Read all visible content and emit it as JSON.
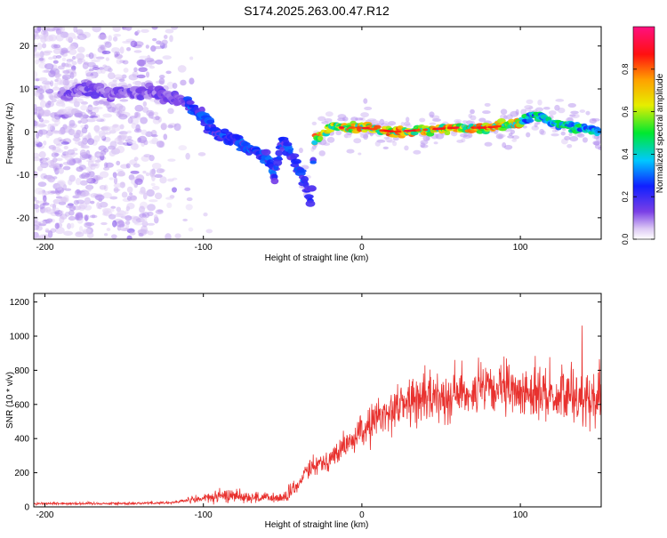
{
  "title": "S174.2025.263.00.47.R12",
  "chart_data": [
    {
      "type": "heatmap",
      "name": "spectrogram",
      "xlabel": "Height of straight line (km)",
      "ylabel": "Frequency (Hz)",
      "xlim": [
        -207,
        151
      ],
      "ylim": [
        -25,
        24.5
      ],
      "xticks": [
        -200,
        -100,
        0,
        100
      ],
      "yticks": [
        20,
        10,
        0,
        -10,
        -20
      ],
      "colorbar": {
        "label": "Normalized spectral amplitude",
        "range": [
          0,
          1
        ],
        "ticks": [
          0.0,
          0.2,
          0.4,
          0.6,
          0.8
        ]
      },
      "ridge": [
        {
          "x": -185,
          "y": 9
        },
        {
          "x": -175,
          "y": 10
        },
        {
          "x": -160,
          "y": 9
        },
        {
          "x": -145,
          "y": 9
        },
        {
          "x": -130,
          "y": 9
        },
        {
          "x": -120,
          "y": 8
        },
        {
          "x": -110,
          "y": 7
        },
        {
          "x": -100,
          "y": 3
        },
        {
          "x": -95,
          "y": 1
        },
        {
          "x": -90,
          "y": -1
        },
        {
          "x": -80,
          "y": -2
        },
        {
          "x": -70,
          "y": -4
        },
        {
          "x": -60,
          "y": -6
        },
        {
          "x": -55,
          "y": -10
        },
        {
          "x": -50,
          "y": -2
        },
        {
          "x": -45,
          "y": -5
        },
        {
          "x": -40,
          "y": -8
        },
        {
          "x": -35,
          "y": -13
        },
        {
          "x": -32,
          "y": -16
        },
        {
          "x": -30,
          "y": -2
        },
        {
          "x": -20,
          "y": 1
        },
        {
          "x": 0,
          "y": 1
        },
        {
          "x": 20,
          "y": 0
        },
        {
          "x": 40,
          "y": 0.5
        },
        {
          "x": 60,
          "y": 1
        },
        {
          "x": 80,
          "y": 1
        },
        {
          "x": 100,
          "y": 2
        },
        {
          "x": 110,
          "y": 4
        },
        {
          "x": 120,
          "y": 2
        },
        {
          "x": 135,
          "y": 1
        },
        {
          "x": 150,
          "y": 0
        }
      ]
    },
    {
      "type": "line",
      "name": "snr",
      "xlabel": "Height of straight line (km)",
      "ylabel": "SNR (10 * v/v)",
      "xlim": [
        -207,
        151
      ],
      "ylim": [
        0,
        1250
      ],
      "xticks": [
        -200,
        -100,
        0,
        100
      ],
      "yticks": [
        0,
        200,
        400,
        600,
        800,
        1000,
        1200
      ],
      "color": "#e8312e",
      "trend": [
        {
          "x": -207,
          "y": 20
        },
        {
          "x": -150,
          "y": 20
        },
        {
          "x": -120,
          "y": 25
        },
        {
          "x": -100,
          "y": 50
        },
        {
          "x": -80,
          "y": 70
        },
        {
          "x": -70,
          "y": 55
        },
        {
          "x": -50,
          "y": 50
        },
        {
          "x": -40,
          "y": 120
        },
        {
          "x": -35,
          "y": 230
        },
        {
          "x": -20,
          "y": 280
        },
        {
          "x": -10,
          "y": 360
        },
        {
          "x": 0,
          "y": 440
        },
        {
          "x": 10,
          "y": 520
        },
        {
          "x": 20,
          "y": 580
        },
        {
          "x": 30,
          "y": 620
        },
        {
          "x": 50,
          "y": 650
        },
        {
          "x": 70,
          "y": 680
        },
        {
          "x": 90,
          "y": 680
        },
        {
          "x": 110,
          "y": 670
        },
        {
          "x": 130,
          "y": 650
        },
        {
          "x": 151,
          "y": 640
        }
      ]
    }
  ]
}
